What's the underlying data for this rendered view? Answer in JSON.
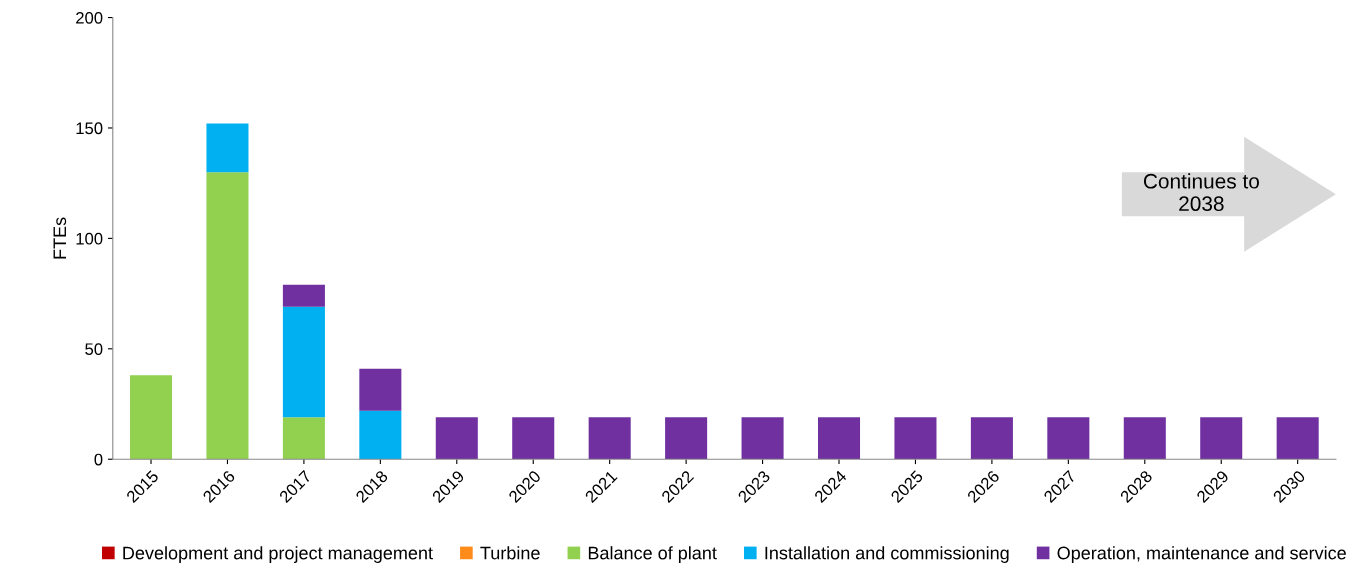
{
  "chart_data": {
    "type": "bar",
    "ylabel": "FTEs",
    "stacked": true,
    "categories": [
      "2015",
      "2016",
      "2017",
      "2018",
      "2019",
      "2020",
      "2021",
      "2022",
      "2023",
      "2024",
      "2025",
      "2026",
      "2027",
      "2028",
      "2029",
      "2030"
    ],
    "series": [
      {
        "name": "Development and project management",
        "color": "#c00000",
        "values": [
          0,
          0,
          0,
          0,
          0,
          0,
          0,
          0,
          0,
          0,
          0,
          0,
          0,
          0,
          0,
          0
        ]
      },
      {
        "name": "Turbine",
        "color": "#ff8c1a",
        "values": [
          0,
          0,
          0,
          0,
          0,
          0,
          0,
          0,
          0,
          0,
          0,
          0,
          0,
          0,
          0,
          0
        ]
      },
      {
        "name": "Balance of plant",
        "color": "#92d050",
        "values": [
          38,
          130,
          19,
          0,
          0,
          0,
          0,
          0,
          0,
          0,
          0,
          0,
          0,
          0,
          0,
          0
        ]
      },
      {
        "name": "Installation and commissioning",
        "color": "#00b0f0",
        "values": [
          0,
          22,
          50,
          22,
          0,
          0,
          0,
          0,
          0,
          0,
          0,
          0,
          0,
          0,
          0,
          0
        ]
      },
      {
        "name": "Operation, maintenance and service",
        "color": "#7030a0",
        "values": [
          0,
          0,
          10,
          19,
          19,
          19,
          19,
          19,
          19,
          19,
          19,
          19,
          19,
          19,
          19,
          19
        ]
      }
    ],
    "ylim": [
      0,
      200
    ],
    "yticks": [
      0,
      50,
      100,
      150,
      200
    ],
    "grid": false,
    "legend": "bottom",
    "annotations": [
      "Continues to\n2038"
    ]
  }
}
